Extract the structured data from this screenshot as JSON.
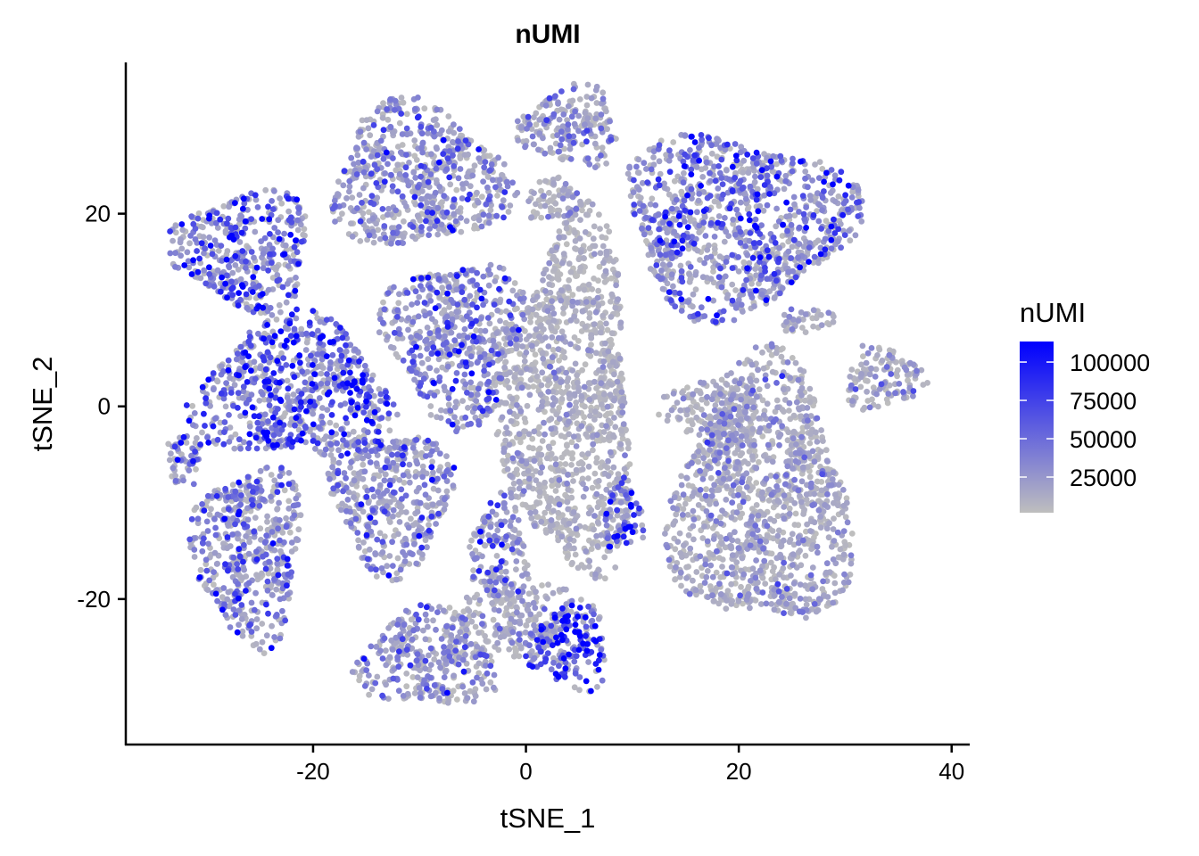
{
  "chart_data": {
    "type": "scatter",
    "title": "nUMI",
    "xlabel": "tSNE_1",
    "ylabel": "tSNE_2",
    "xlim": [
      -37.6,
      41.7
    ],
    "ylim": [
      -35.1,
      35.7
    ],
    "xticks": [
      -20,
      0,
      20,
      40
    ],
    "yticks": [
      -20,
      0,
      20
    ],
    "xtick_labels": [
      "-20",
      "0",
      "20",
      "40"
    ],
    "ytick_labels": [
      "-20",
      "0",
      "20"
    ],
    "grid": false,
    "color_scale": {
      "title": "nUMI",
      "low_color": "#BEBEBE",
      "high_color": "#0000FF",
      "range": [
        1750,
        113400
      ],
      "ticks": [
        100000,
        75000,
        50000,
        25000
      ],
      "tick_labels": [
        "100000",
        "75000",
        "50000",
        "25000"
      ],
      "legend_position": "right"
    },
    "clusters": [
      {
        "center": [
          -10.1,
          23.7
        ],
        "spread": [
          9,
          8
        ],
        "mean_nUMI": 25000
      },
      {
        "center": [
          -26.4,
          16.3
        ],
        "spread": [
          7,
          6.5
        ],
        "mean_nUMI": 40000
      },
      {
        "center": [
          -21.8,
          1.5
        ],
        "spread": [
          10,
          8
        ],
        "mean_nUMI": 45000
      },
      {
        "center": [
          -32.3,
          -5.5
        ],
        "spread": [
          2,
          3
        ],
        "mean_nUMI": 30000
      },
      {
        "center": [
          -26.0,
          -15.2
        ],
        "spread": [
          5.5,
          10
        ],
        "mean_nUMI": 30000
      },
      {
        "center": [
          -12.6,
          -9.6
        ],
        "spread": [
          6,
          8
        ],
        "mean_nUMI": 25000
      },
      {
        "center": [
          -9.2,
          -26.3
        ],
        "spread": [
          7,
          5.5
        ],
        "mean_nUMI": 22000
      },
      {
        "center": [
          4.2,
          0.5
        ],
        "spread": [
          6.5,
          20
        ],
        "mean_nUMI": 10000
      },
      {
        "center": [
          -6.7,
          7.0
        ],
        "spread": [
          7,
          9
        ],
        "mean_nUMI": 30000
      },
      {
        "center": [
          -2.5,
          -15.0
        ],
        "spread": [
          3,
          6
        ],
        "mean_nUMI": 28000
      },
      {
        "center": [
          -0.8,
          -22.0
        ],
        "spread": [
          6,
          4
        ],
        "mean_nUMI": 15000
      },
      {
        "center": [
          4.2,
          -25.0
        ],
        "spread": [
          4,
          5
        ],
        "mean_nUMI": 65000
      },
      {
        "center": [
          9.2,
          -11.5
        ],
        "spread": [
          2,
          4
        ],
        "mean_nUMI": 60000
      },
      {
        "center": [
          4.2,
          29.0
        ],
        "spread": [
          5,
          4.5
        ],
        "mean_nUMI": 20000
      },
      {
        "center": [
          2.5,
          21.4
        ],
        "spread": [
          3,
          2.5
        ],
        "mean_nUMI": 18000
      },
      {
        "center": [
          19.7,
          19.1
        ],
        "spread": [
          11.5,
          10
        ],
        "mean_nUMI": 35000
      },
      {
        "center": [
          22.2,
          -9.6
        ],
        "spread": [
          9,
          15
        ],
        "mean_nUMI": 15000
      },
      {
        "center": [
          17.6,
          -0.4
        ],
        "spread": [
          5,
          4
        ],
        "mean_nUMI": 12000
      },
      {
        "center": [
          33.5,
          2.9
        ],
        "spread": [
          4,
          3.5
        ],
        "mean_nUMI": 18000
      },
      {
        "center": [
          26.4,
          8.9
        ],
        "spread": [
          3,
          1.5
        ],
        "mean_nUMI": 15000
      }
    ]
  }
}
